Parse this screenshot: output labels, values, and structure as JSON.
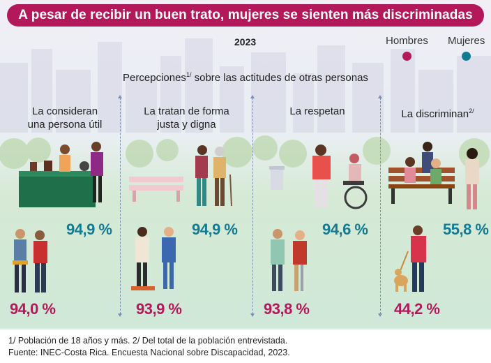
{
  "title": "A pesar de recibir un buen trato, mujeres se sienten más discriminadas",
  "year": "2023",
  "legend": [
    {
      "label": "Hombres",
      "color": "#b3195a"
    },
    {
      "label": "Mujeres",
      "color": "#137a93"
    }
  ],
  "subtitle": {
    "text_before": "Percepciones",
    "sup": "1/",
    "text_after": " sobre las actitudes de otras personas"
  },
  "columns": [
    {
      "title_l1": "La consideran",
      "title_l2": "una persona útil",
      "sup": "",
      "women": "94,9 %",
      "men": "94,0 %"
    },
    {
      "title_l1": "La tratan de forma",
      "title_l2": "justa y digna",
      "sup": "",
      "women": "94,9 %",
      "men": "93,9 %"
    },
    {
      "title_l1": "La respetan",
      "title_l2": "",
      "sup": "",
      "women": "94,6 %",
      "men": "93,8 %"
    },
    {
      "title_l1": "La discriminan",
      "title_l2": "",
      "sup": "2/",
      "women": "55,8 %",
      "men": "44,2 %"
    }
  ],
  "footnotes": {
    "line1": "1/ Población de 18 años y más. 2/ Del total de la población entrevistada.",
    "line2": "Fuente: INEC-Costa Rica. Encuesta Nacional sobre Discapacidad, 2023."
  }
}
